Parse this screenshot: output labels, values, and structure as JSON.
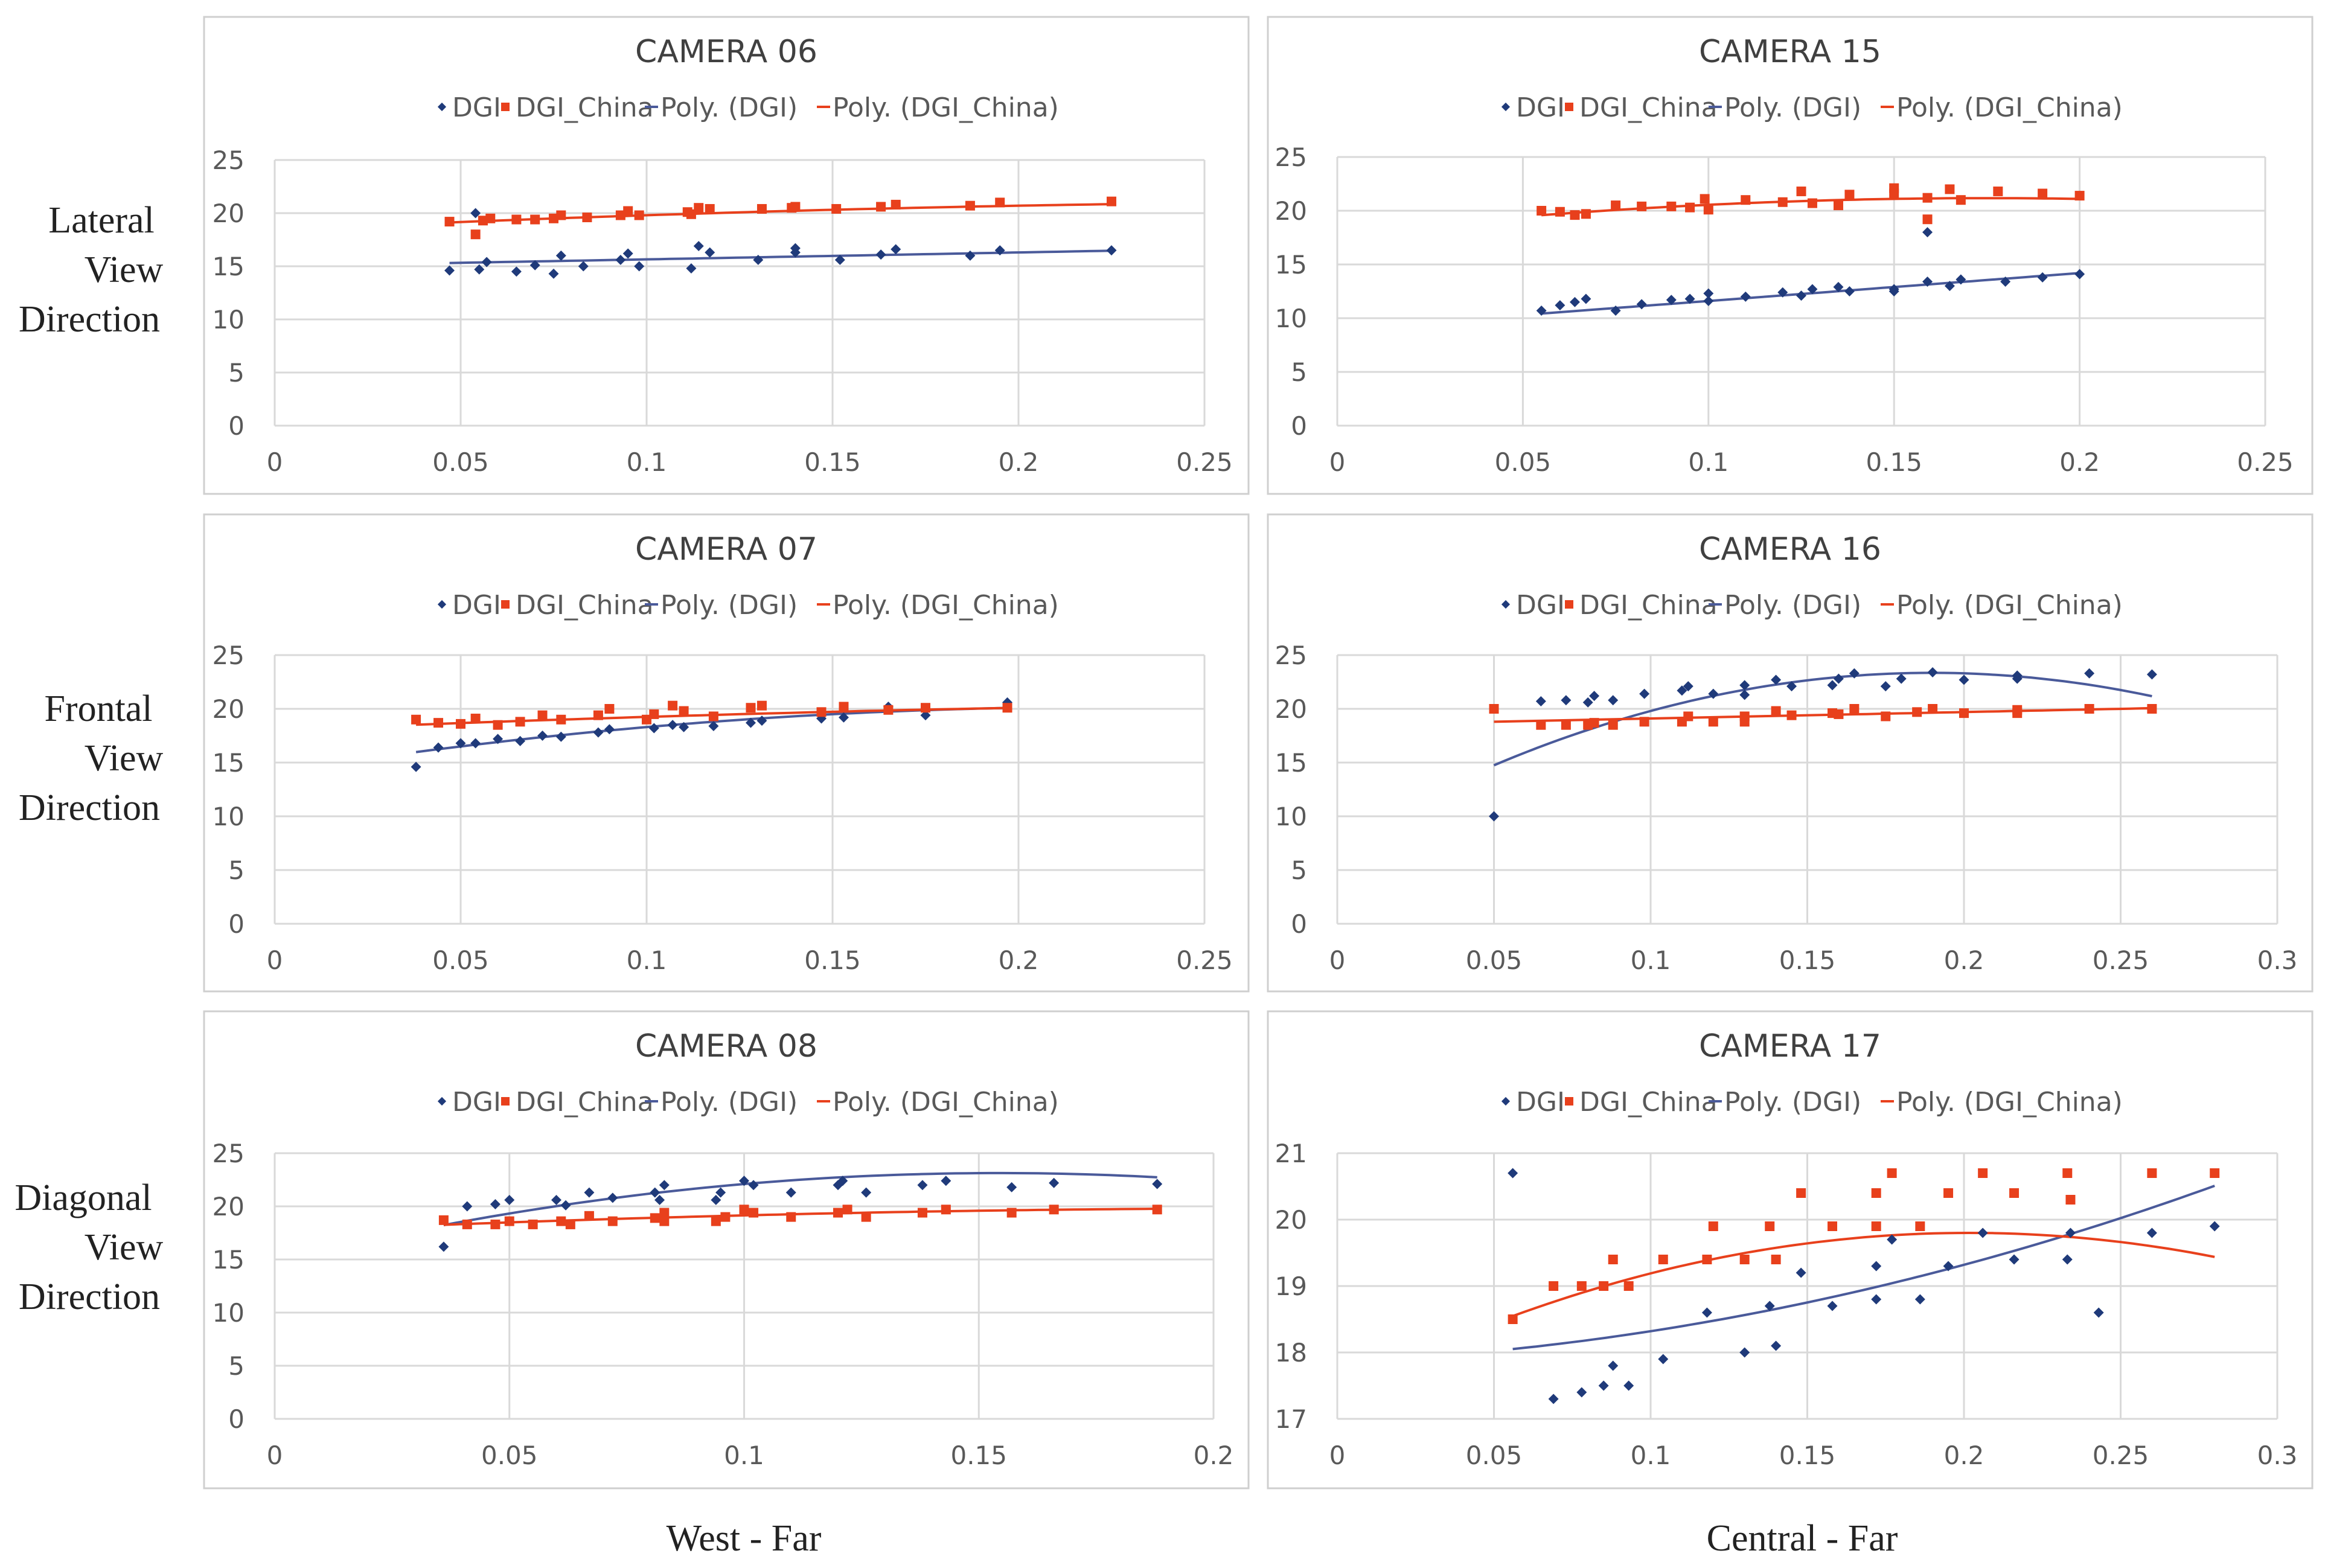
{
  "row_labels": [
    [
      "Lateral",
      "View",
      "Direction"
    ],
    [
      "Frontal",
      "View",
      "Direction"
    ],
    [
      "Diagonal",
      "View",
      "Direction"
    ]
  ],
  "column_labels": [
    "West - Far",
    "Central - Far"
  ],
  "colors": {
    "dgi": "#1f3a7a",
    "china": "#e8401c",
    "dgi_line": "#4a5a9a",
    "china_line": "#e8401c"
  },
  "legend": [
    "DGI",
    "DGI_China",
    "Poly. (DGI)",
    "Poly. (DGI_China)"
  ],
  "chart_data": [
    {
      "type": "scatter",
      "title": "CAMERA 06",
      "xlim": [
        0,
        0.25
      ],
      "xticks": [
        0,
        0.05,
        0.1,
        0.15,
        0.2,
        0.25
      ],
      "xtick_labels": [
        "0",
        "0.05",
        "0.1",
        "0.15",
        "0.2",
        "0.25"
      ],
      "ylim": [
        0,
        25
      ],
      "yticks": [
        0,
        5,
        10,
        15,
        20,
        25
      ],
      "series": [
        {
          "name": "DGI",
          "x": [
            0.047,
            0.054,
            0.055,
            0.057,
            0.065,
            0.07,
            0.075,
            0.077,
            0.083,
            0.093,
            0.095,
            0.098,
            0.112,
            0.114,
            0.117,
            0.13,
            0.14,
            0.14,
            0.152,
            0.163,
            0.167,
            0.187,
            0.195,
            0.225
          ],
          "y": [
            14.6,
            20.0,
            14.7,
            15.4,
            14.5,
            15.1,
            14.3,
            16.0,
            15.0,
            15.6,
            16.2,
            15.0,
            14.8,
            16.9,
            16.3,
            15.6,
            16.3,
            16.7,
            15.6,
            16.1,
            16.6,
            16.0,
            16.5,
            16.5
          ]
        },
        {
          "name": "DGI_China",
          "x": [
            0.047,
            0.054,
            0.056,
            0.058,
            0.065,
            0.07,
            0.075,
            0.077,
            0.084,
            0.093,
            0.095,
            0.098,
            0.111,
            0.112,
            0.114,
            0.117,
            0.131,
            0.139,
            0.14,
            0.151,
            0.163,
            0.167,
            0.187,
            0.195,
            0.225
          ],
          "y": [
            19.2,
            18.0,
            19.3,
            19.5,
            19.4,
            19.4,
            19.5,
            19.8,
            19.6,
            19.8,
            20.2,
            19.8,
            20.1,
            19.9,
            20.5,
            20.4,
            20.4,
            20.5,
            20.6,
            20.4,
            20.6,
            20.8,
            20.7,
            21.0,
            21.1
          ]
        },
        {
          "name": "Poly. (DGI)",
          "coef": [
            15.0,
            6.5,
            0
          ],
          "xrange": [
            0.047,
            0.225
          ]
        },
        {
          "name": "Poly. (DGI_China)",
          "coef": [
            18.4,
            16.5,
            -25
          ],
          "xrange": [
            0.047,
            0.225
          ]
        }
      ]
    },
    {
      "type": "scatter",
      "title": "CAMERA 15",
      "xlim": [
        0,
        0.25
      ],
      "xticks": [
        0,
        0.05,
        0.1,
        0.15,
        0.2,
        0.25
      ],
      "xtick_labels": [
        "0",
        "0.05",
        "0.1",
        "0.15",
        "0.2",
        "0.25"
      ],
      "ylim": [
        0,
        25
      ],
      "yticks": [
        0,
        5,
        10,
        15,
        20,
        25
      ],
      "series": [
        {
          "name": "DGI",
          "x": [
            0.055,
            0.06,
            0.064,
            0.067,
            0.075,
            0.082,
            0.09,
            0.095,
            0.1,
            0.1,
            0.11,
            0.12,
            0.125,
            0.128,
            0.135,
            0.138,
            0.15,
            0.15,
            0.159,
            0.159,
            0.165,
            0.168,
            0.18,
            0.19,
            0.2
          ],
          "y": [
            10.7,
            11.2,
            11.5,
            11.8,
            10.7,
            11.3,
            11.7,
            11.8,
            11.6,
            12.3,
            12.0,
            12.4,
            12.1,
            12.7,
            12.9,
            12.5,
            12.5,
            12.7,
            13.4,
            18.0,
            13.0,
            13.6,
            13.4,
            13.8,
            14.1
          ]
        },
        {
          "name": "DGI_China",
          "x": [
            0.055,
            0.06,
            0.064,
            0.067,
            0.075,
            0.082,
            0.09,
            0.095,
            0.099,
            0.1,
            0.11,
            0.12,
            0.125,
            0.128,
            0.135,
            0.138,
            0.15,
            0.15,
            0.159,
            0.159,
            0.165,
            0.168,
            0.178,
            0.19,
            0.2
          ],
          "y": [
            20.0,
            19.9,
            19.6,
            19.7,
            20.5,
            20.4,
            20.4,
            20.3,
            21.1,
            20.1,
            21.0,
            20.8,
            21.8,
            20.7,
            20.5,
            21.5,
            21.6,
            22.1,
            21.2,
            19.2,
            22.0,
            21.0,
            21.8,
            21.6,
            21.4
          ]
        },
        {
          "name": "Poly. (DGI)",
          "coef": [
            9.0,
            26.0,
            0
          ],
          "xrange": [
            0.055,
            0.2
          ]
        },
        {
          "name": "Poly. (DGI_China)",
          "coef": [
            17.8,
            38.5,
            -110
          ],
          "xrange": [
            0.055,
            0.2
          ]
        }
      ]
    },
    {
      "type": "scatter",
      "title": "CAMERA 07",
      "xlim": [
        0,
        0.25
      ],
      "xticks": [
        0,
        0.05,
        0.1,
        0.15,
        0.2,
        0.25
      ],
      "xtick_labels": [
        "0",
        "0.05",
        "0.1",
        "0.15",
        "0.2",
        "0.25"
      ],
      "ylim": [
        0,
        25
      ],
      "yticks": [
        0,
        5,
        10,
        15,
        20,
        25
      ],
      "series": [
        {
          "name": "DGI",
          "x": [
            0.038,
            0.044,
            0.05,
            0.054,
            0.06,
            0.066,
            0.072,
            0.077,
            0.087,
            0.09,
            0.102,
            0.107,
            0.11,
            0.118,
            0.128,
            0.131,
            0.147,
            0.153,
            0.165,
            0.175,
            0.197
          ],
          "y": [
            14.6,
            16.4,
            16.8,
            16.8,
            17.2,
            17.0,
            17.5,
            17.4,
            17.8,
            18.1,
            18.2,
            18.5,
            18.3,
            18.4,
            18.7,
            18.9,
            19.1,
            19.2,
            20.2,
            19.4,
            20.6
          ]
        },
        {
          "name": "DGI_China",
          "x": [
            0.038,
            0.044,
            0.05,
            0.054,
            0.06,
            0.066,
            0.072,
            0.077,
            0.087,
            0.09,
            0.1,
            0.102,
            0.107,
            0.11,
            0.118,
            0.128,
            0.131,
            0.147,
            0.153,
            0.165,
            0.175,
            0.197
          ],
          "y": [
            19.0,
            18.7,
            18.6,
            19.1,
            18.5,
            18.8,
            19.4,
            19.0,
            19.4,
            20.0,
            19.0,
            19.5,
            20.3,
            19.8,
            19.3,
            20.1,
            20.3,
            19.7,
            20.2,
            19.9,
            20.1,
            20.1
          ]
        },
        {
          "name": "Poly. (DGI)",
          "coef": [
            14.1,
            54.0,
            -120
          ],
          "xrange": [
            0.038,
            0.197
          ]
        },
        {
          "name": "Poly. (DGI_China)",
          "coef": [
            18.0,
            14.5,
            -20
          ],
          "xrange": [
            0.038,
            0.197
          ]
        }
      ]
    },
    {
      "type": "scatter",
      "title": "CAMERA 16",
      "xlim": [
        0,
        0.3
      ],
      "xticks": [
        0,
        0.05,
        0.1,
        0.15,
        0.2,
        0.25,
        0.3
      ],
      "xtick_labels": [
        "0",
        "0.05",
        "0.1",
        "0.15",
        "0.2",
        "0.25",
        "0.3"
      ],
      "ylim": [
        0,
        25
      ],
      "yticks": [
        0,
        5,
        10,
        15,
        20,
        25
      ],
      "series": [
        {
          "name": "DGI",
          "x": [
            0.05,
            0.065,
            0.073,
            0.08,
            0.082,
            0.088,
            0.098,
            0.11,
            0.112,
            0.12,
            0.13,
            0.13,
            0.14,
            0.145,
            0.158,
            0.16,
            0.165,
            0.175,
            0.18,
            0.19,
            0.2,
            0.217,
            0.217,
            0.24,
            0.26
          ],
          "y": [
            10.0,
            20.7,
            20.8,
            20.6,
            21.2,
            20.8,
            21.4,
            21.7,
            22.1,
            21.4,
            21.3,
            22.2,
            22.7,
            22.1,
            22.2,
            22.8,
            23.3,
            22.1,
            22.8,
            23.4,
            22.7,
            23.1,
            22.8,
            23.3,
            23.2
          ]
        },
        {
          "name": "DGI_China",
          "x": [
            0.05,
            0.065,
            0.073,
            0.08,
            0.082,
            0.088,
            0.098,
            0.11,
            0.112,
            0.12,
            0.13,
            0.13,
            0.14,
            0.145,
            0.158,
            0.16,
            0.165,
            0.175,
            0.185,
            0.19,
            0.2,
            0.217,
            0.217,
            0.24,
            0.26
          ],
          "y": [
            20.0,
            18.5,
            18.5,
            18.5,
            18.7,
            18.5,
            18.8,
            18.8,
            19.3,
            18.8,
            19.3,
            18.8,
            19.8,
            19.4,
            19.6,
            19.5,
            20.0,
            19.3,
            19.7,
            20.0,
            19.6,
            19.6,
            19.9,
            20.0,
            20.0
          ]
        },
        {
          "name": "Poly. (DGI)",
          "coef": [
            7.5,
            167.0,
            -440
          ],
          "xrange": [
            0.05,
            0.26
          ]
        },
        {
          "name": "Poly. (DGI_China)",
          "coef": [
            18.5,
            6.0,
            0
          ],
          "xrange": [
            0.05,
            0.26
          ]
        }
      ]
    },
    {
      "type": "scatter",
      "title": "CAMERA 08",
      "xlim": [
        0,
        0.2
      ],
      "xticks": [
        0,
        0.05,
        0.1,
        0.15,
        0.2
      ],
      "xtick_labels": [
        "0",
        "0.05",
        "0.1",
        "0.15",
        "0.2"
      ],
      "ylim": [
        0,
        25
      ],
      "yticks": [
        0,
        5,
        10,
        15,
        20,
        25
      ],
      "series": [
        {
          "name": "DGI",
          "x": [
            0.036,
            0.041,
            0.047,
            0.05,
            0.06,
            0.062,
            0.067,
            0.072,
            0.081,
            0.082,
            0.083,
            0.094,
            0.095,
            0.1,
            0.102,
            0.11,
            0.12,
            0.121,
            0.126,
            0.138,
            0.143,
            0.157,
            0.166,
            0.188
          ],
          "y": [
            16.2,
            20.0,
            20.2,
            20.6,
            20.6,
            20.1,
            21.3,
            20.8,
            21.3,
            20.6,
            22.0,
            20.6,
            21.3,
            22.4,
            22.0,
            21.3,
            22.0,
            22.4,
            21.3,
            22.0,
            22.4,
            21.8,
            22.2,
            22.1
          ]
        },
        {
          "name": "DGI_China",
          "x": [
            0.036,
            0.041,
            0.047,
            0.05,
            0.055,
            0.061,
            0.063,
            0.067,
            0.072,
            0.081,
            0.083,
            0.083,
            0.094,
            0.096,
            0.1,
            0.102,
            0.11,
            0.12,
            0.122,
            0.126,
            0.138,
            0.143,
            0.157,
            0.166,
            0.188
          ],
          "y": [
            18.7,
            18.3,
            18.3,
            18.6,
            18.3,
            18.6,
            18.3,
            19.1,
            18.6,
            18.9,
            18.6,
            19.4,
            18.6,
            19.0,
            19.7,
            19.4,
            19.0,
            19.4,
            19.7,
            19.0,
            19.4,
            19.7,
            19.4,
            19.7,
            19.7
          ]
        },
        {
          "name": "Poly. (DGI)",
          "coef": [
            14.8,
            108.0,
            -350
          ],
          "xrange": [
            0.036,
            0.188
          ]
        },
        {
          "name": "Poly. (DGI_China)",
          "coef": [
            17.6,
            20.0,
            -45
          ],
          "xrange": [
            0.036,
            0.188
          ]
        }
      ]
    },
    {
      "type": "scatter",
      "title": "CAMERA 17",
      "xlim": [
        0,
        0.3
      ],
      "xticks": [
        0,
        0.05,
        0.1,
        0.15,
        0.2,
        0.25,
        0.3
      ],
      "xtick_labels": [
        "0",
        "0.05",
        "0.1",
        "0.15",
        "0.2",
        "0.25",
        "0.3"
      ],
      "ylim": [
        17,
        21
      ],
      "yticks": [
        17,
        18,
        19,
        20,
        21
      ],
      "series": [
        {
          "name": "DGI",
          "x": [
            0.056,
            0.069,
            0.078,
            0.085,
            0.088,
            0.093,
            0.104,
            0.118,
            0.13,
            0.138,
            0.14,
            0.148,
            0.158,
            0.172,
            0.172,
            0.177,
            0.186,
            0.195,
            0.206,
            0.216,
            0.233,
            0.234,
            0.243,
            0.26,
            0.28
          ],
          "y": [
            20.7,
            17.3,
            17.4,
            17.5,
            17.8,
            17.5,
            17.9,
            18.6,
            18.0,
            18.7,
            18.1,
            19.2,
            18.7,
            19.3,
            18.8,
            19.7,
            18.8,
            19.3,
            19.8,
            19.4,
            19.4,
            19.8,
            18.6,
            19.8,
            19.9
          ]
        },
        {
          "name": "DGI_China",
          "x": [
            0.056,
            0.069,
            0.078,
            0.085,
            0.088,
            0.093,
            0.104,
            0.118,
            0.12,
            0.13,
            0.138,
            0.14,
            0.148,
            0.158,
            0.172,
            0.172,
            0.177,
            0.186,
            0.195,
            0.206,
            0.216,
            0.233,
            0.234,
            0.26,
            0.28
          ],
          "y": [
            18.5,
            19.0,
            19.0,
            19.0,
            19.4,
            19.0,
            19.4,
            19.4,
            19.9,
            19.4,
            19.9,
            19.4,
            20.4,
            19.9,
            19.9,
            20.4,
            20.7,
            19.9,
            20.4,
            20.7,
            20.4,
            20.7,
            20.3,
            20.7,
            20.7
          ]
        },
        {
          "name": "Poly. (DGI)",
          "coef": [
            17.86,
            1.9,
            27
          ],
          "xrange": [
            0.056,
            0.28
          ]
        },
        {
          "name": "Poly. (DGI_China)",
          "coef": [
            17.4,
            23.8,
            -59
          ],
          "xrange": [
            0.056,
            0.28
          ]
        }
      ]
    }
  ]
}
